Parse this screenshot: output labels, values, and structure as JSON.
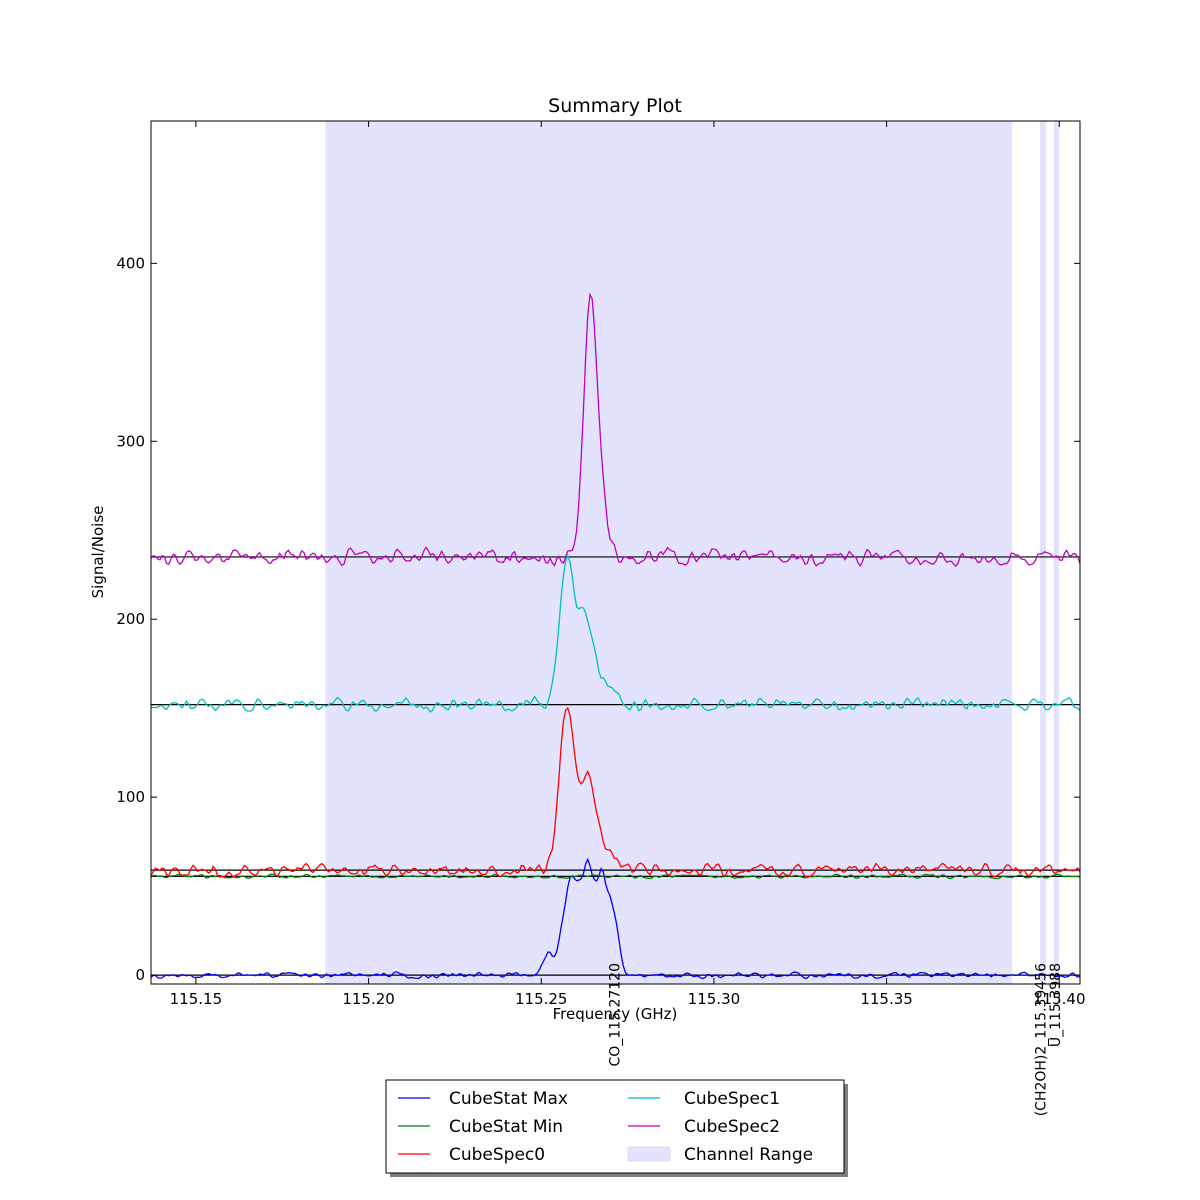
{
  "chart_data": {
    "type": "line",
    "title": "Summary Plot",
    "xlabel": "Frequency (GHz)",
    "ylabel": "Signal/Noise",
    "xlim": [
      115.137,
      115.406
    ],
    "ylim": [
      -5,
      480
    ],
    "xticks": [
      115.15,
      115.2,
      115.25,
      115.3,
      115.35,
      115.4
    ],
    "xtick_labels": [
      "115.15",
      "115.20",
      "115.25",
      "115.30",
      "115.35",
      "115.40"
    ],
    "yticks": [
      0,
      100,
      200,
      300,
      400
    ],
    "ytick_labels": [
      "0",
      "100",
      "200",
      "300",
      "400"
    ],
    "grid": false,
    "legend_placement": "bottom-center, below axes",
    "series": [
      {
        "name": "CubeStat Max",
        "color": "#0000ff",
        "baseline": 0,
        "noise": 1.2,
        "peaks": [
          [
            115.252,
            12,
            0.0015
          ],
          [
            115.2565,
            22,
            0.0016
          ],
          [
            115.259,
            44,
            0.0016
          ],
          [
            115.2615,
            30,
            0.0012
          ],
          [
            115.2635,
            52,
            0.0011
          ],
          [
            115.2655,
            38,
            0.001
          ],
          [
            115.2675,
            47,
            0.001
          ],
          [
            115.2695,
            32,
            0.0012
          ],
          [
            115.2715,
            24,
            0.0013
          ]
        ]
      },
      {
        "name": "CubeStat Min",
        "color": "#008000",
        "baseline": 55.5,
        "noise": 0.8,
        "peaks": []
      },
      {
        "name": "CubeSpec0",
        "color": "#ff0000",
        "baseline": 59,
        "noise": 2.5,
        "peaks": [
          [
            115.2575,
            92,
            0.0022
          ],
          [
            115.2635,
            50,
            0.002
          ],
          [
            115.2685,
            14,
            0.0025
          ]
        ]
      },
      {
        "name": "CubeSpec1",
        "color": "#00bfbf",
        "baseline": 152,
        "noise": 2.6,
        "peaks": [
          [
            115.2575,
            82,
            0.0022
          ],
          [
            115.263,
            47,
            0.002
          ],
          [
            115.2685,
            12,
            0.0025
          ]
        ]
      },
      {
        "name": "CubeSpec2",
        "color": "#bf00bf",
        "baseline": 235,
        "noise": 3.2,
        "peaks": [
          [
            115.264,
            130,
            0.0018
          ],
          [
            115.2665,
            40,
            0.002
          ]
        ]
      }
    ],
    "reference_lines": [
      0,
      55.5,
      59,
      152,
      235
    ],
    "channel_ranges": [
      [
        115.1875,
        115.3863
      ],
      [
        115.3944,
        115.3962
      ],
      [
        115.3984,
        115.3999
      ]
    ],
    "channel_range_color": "#e3e3fd",
    "line_markers": [
      {
        "freq": 115.2712,
        "label": "CO_115.27120"
      },
      {
        "freq": 115.3946,
        "label": "(CH2OH)2_115.39456"
      },
      {
        "freq": 115.3988,
        "label": "U_115.3988"
      }
    ],
    "legend": [
      {
        "label": "CubeStat Max",
        "kind": "line",
        "color": "#0000ff"
      },
      {
        "label": "CubeStat Min",
        "kind": "line",
        "color": "#008000"
      },
      {
        "label": "CubeSpec0",
        "kind": "line",
        "color": "#ff0000"
      },
      {
        "label": "CubeSpec1",
        "kind": "line",
        "color": "#00bfbf"
      },
      {
        "label": "CubeSpec2",
        "kind": "line",
        "color": "#bf00bf"
      },
      {
        "label": "Channel Range",
        "kind": "patch",
        "color": "#e3e3fd"
      }
    ]
  }
}
